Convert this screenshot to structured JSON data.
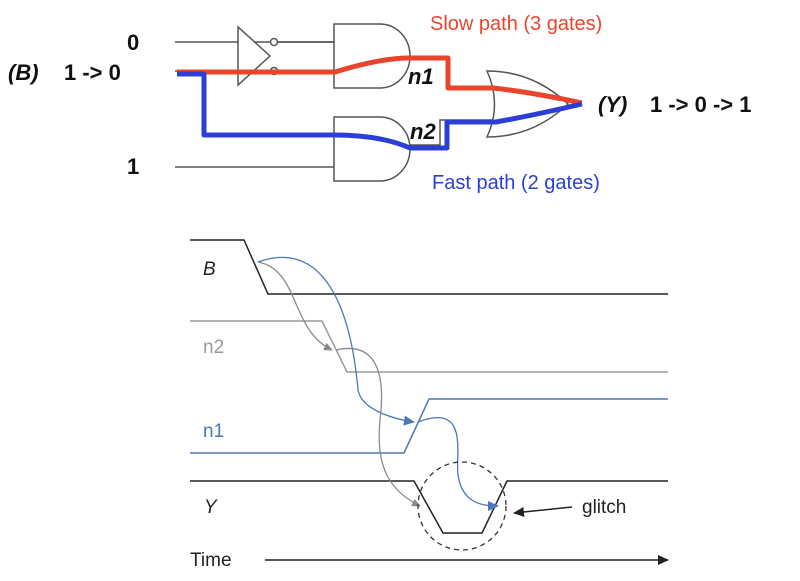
{
  "circuit": {
    "input_top": "0",
    "input_b_name": "(B)",
    "input_b_value": "1 -> 0",
    "input_bottom": "1",
    "node_n1": "n1",
    "node_n2": "n2",
    "output_name": "(Y)",
    "output_value": "1 -> 0 -> 1",
    "slow_path_label": "Slow path (3 gates)",
    "fast_path_label": "Fast path (2 gates)"
  },
  "timing": {
    "signal_b": "B",
    "signal_n2": "n2",
    "signal_n1": "n1",
    "signal_y": "Y",
    "glitch_label": "glitch",
    "time_label": "Time"
  },
  "colors": {
    "slow_path": "#e8452c",
    "fast_path": "#2b3fd6",
    "n1_wave": "#4a78b8",
    "n2_wave": "#9a9a9a",
    "black_wave": "#222222"
  }
}
